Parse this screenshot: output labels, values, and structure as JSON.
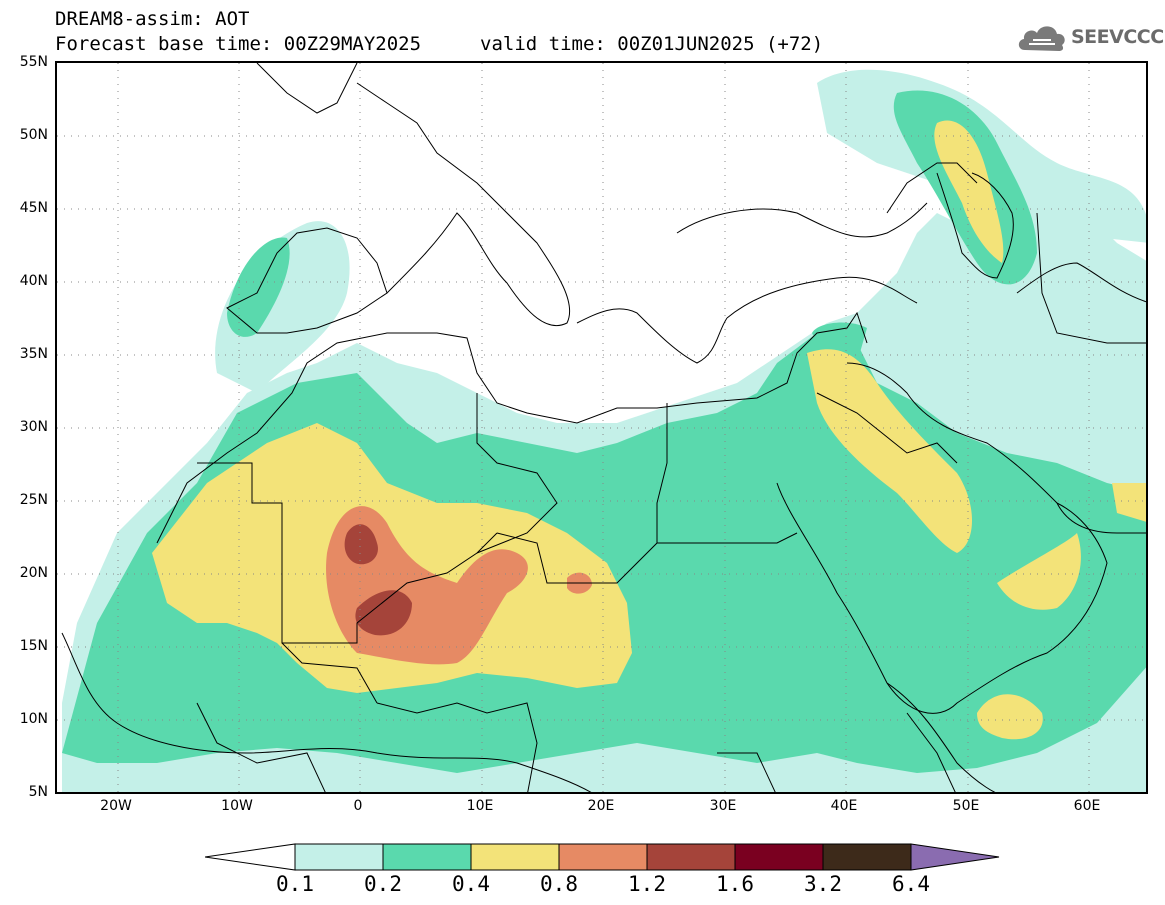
{
  "header": {
    "model_line": "DREAM8-assim: AOT",
    "base_time": "Forecast base time: 00Z29MAY2025",
    "valid_time": "valid time: 00Z01JUN2025 (+72)"
  },
  "logo": {
    "text": "SEEVCCC"
  },
  "map": {
    "lat_labels": [
      "55N",
      "50N",
      "45N",
      "40N",
      "35N",
      "30N",
      "25N",
      "20N",
      "15N",
      "10N",
      "5N"
    ],
    "lon_labels": [
      "20W",
      "10W",
      "0",
      "10E",
      "20E",
      "30E",
      "40E",
      "50E",
      "60E"
    ],
    "lat_range": [
      5,
      55
    ],
    "lon_range": [
      -25,
      65
    ],
    "grid": "dotted"
  },
  "colorbar": {
    "labels": [
      "0.1",
      "0.2",
      "0.4",
      "0.8",
      "1.2",
      "1.6",
      "3.2",
      "6.4"
    ],
    "colors": [
      "#ffffff",
      "#c4f0e8",
      "#5ad9ad",
      "#f3e379",
      "#e68a64",
      "#a5443a",
      "#7a0020",
      "#3d2a1a",
      "#8a6cb0"
    ]
  },
  "field_colors": {
    "0.1-0.2": "#c4f0e8",
    "0.2-0.4": "#5ad9ad",
    "0.4-0.8": "#f3e379",
    "0.8-1.2": "#e68a64",
    "1.2-1.6": "#a5443a"
  }
}
